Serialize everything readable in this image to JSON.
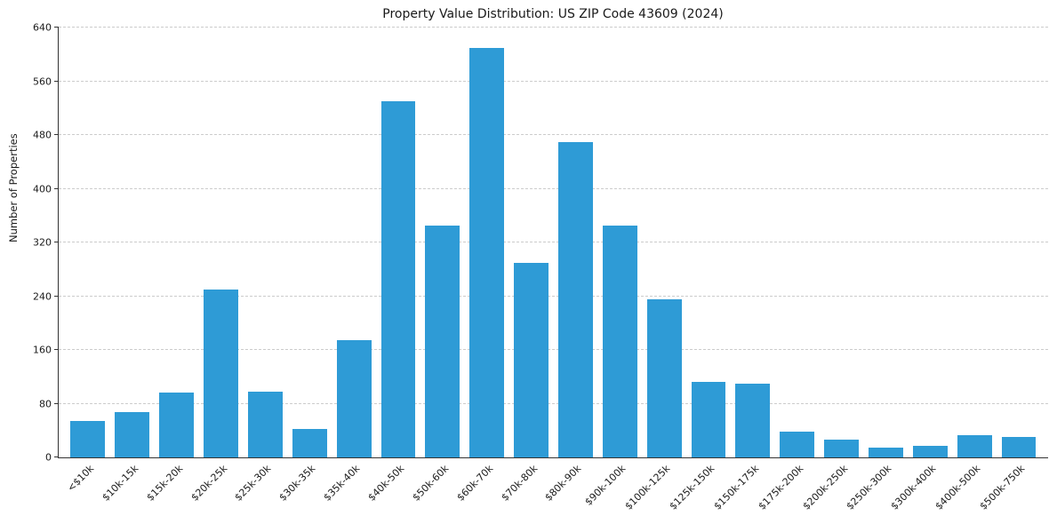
{
  "chart_data": {
    "type": "bar",
    "title": "Property Value Distribution: US ZIP Code 43609 (2024)",
    "xlabel": "",
    "ylabel": "Number of Properties",
    "ylim": [
      0,
      640
    ],
    "yticks": [
      0,
      80,
      160,
      240,
      320,
      400,
      480,
      560,
      640
    ],
    "grid": "horizontal-dashed",
    "legend_position": "none",
    "bar_color": "#2e9bd6",
    "categories": [
      "<$10k",
      "$10k-15k",
      "$15k-20k",
      "$20k-25k",
      "$25k-30k",
      "$30k-35k",
      "$35k-40k",
      "$40k-50k",
      "$50k-60k",
      "$60k-70k",
      "$70k-80k",
      "$80k-90k",
      "$90k-100k",
      "$100k-125k",
      "$125k-150k",
      "$150k-175k",
      "$175k-200k",
      "$200k-250k",
      "$250k-300k",
      "$300k-400k",
      "$400k-500k",
      "$500k-750k"
    ],
    "values": [
      54,
      68,
      96,
      250,
      98,
      42,
      175,
      530,
      345,
      610,
      290,
      470,
      345,
      235,
      112,
      110,
      38,
      26,
      15,
      17,
      33,
      30
    ]
  }
}
